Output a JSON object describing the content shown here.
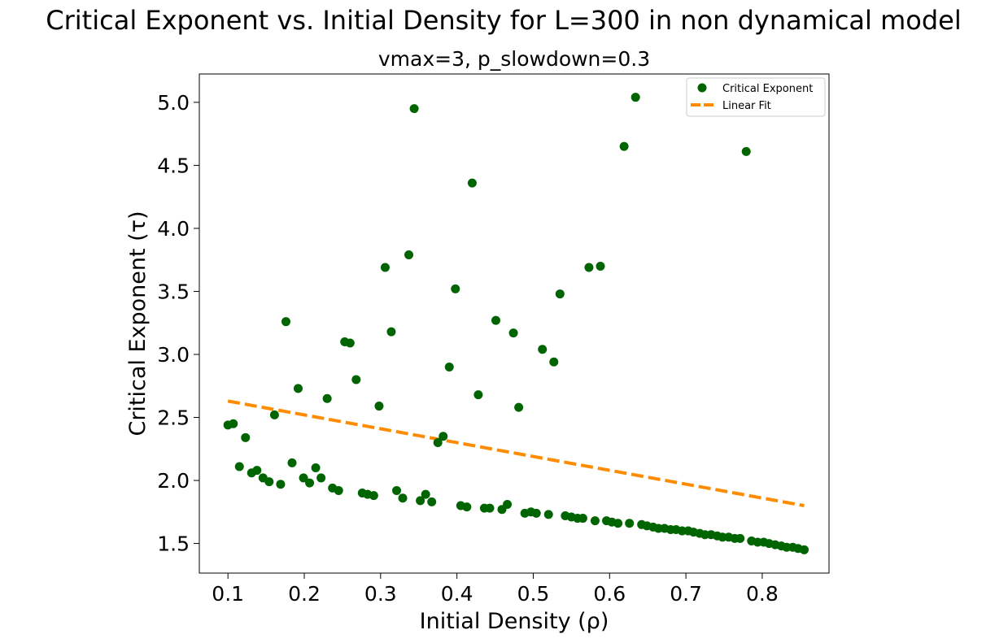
{
  "chart_data": {
    "type": "scatter",
    "title": "Critical Exponent vs. Initial Density for L=300 in non dynamical model",
    "subtitle": "vmax=3, p_slowdown=0.3",
    "xlabel": "Initial Density (ρ)",
    "ylabel": "Critical Exponent (τ)",
    "xlim": [
      0.0625,
      0.8875
    ],
    "ylim": [
      1.265,
      5.225
    ],
    "xticks": [
      0.1,
      0.2,
      0.3,
      0.4,
      0.5,
      0.6,
      0.7,
      0.8
    ],
    "xtick_labels": [
      "0.1",
      "0.2",
      "0.3",
      "0.4",
      "0.5",
      "0.6",
      "0.7",
      "0.8"
    ],
    "yticks": [
      1.5,
      2.0,
      2.5,
      3.0,
      3.5,
      4.0,
      4.5,
      5.0
    ],
    "ytick_labels": [
      "1.5",
      "2.0",
      "2.5",
      "3.0",
      "3.5",
      "4.0",
      "4.5",
      "5.0"
    ],
    "grid": false,
    "legend_position": "upper right",
    "series": [
      {
        "name": "Critical Exponent",
        "kind": "scatter",
        "color": "#006400",
        "points": [
          [
            0.1,
            2.44
          ],
          [
            0.107,
            2.45
          ],
          [
            0.115,
            2.11
          ],
          [
            0.123,
            2.34
          ],
          [
            0.131,
            2.06
          ],
          [
            0.138,
            2.08
          ],
          [
            0.146,
            2.02
          ],
          [
            0.154,
            1.99
          ],
          [
            0.161,
            2.52
          ],
          [
            0.169,
            1.97
          ],
          [
            0.176,
            3.26
          ],
          [
            0.184,
            2.14
          ],
          [
            0.192,
            2.73
          ],
          [
            0.199,
            2.02
          ],
          [
            0.207,
            1.98
          ],
          [
            0.215,
            2.1
          ],
          [
            0.222,
            2.02
          ],
          [
            0.23,
            2.65
          ],
          [
            0.237,
            1.94
          ],
          [
            0.245,
            1.92
          ],
          [
            0.253,
            3.1
          ],
          [
            0.26,
            3.09
          ],
          [
            0.268,
            2.8
          ],
          [
            0.276,
            1.9
          ],
          [
            0.283,
            1.89
          ],
          [
            0.291,
            1.88
          ],
          [
            0.298,
            2.59
          ],
          [
            0.306,
            3.69
          ],
          [
            0.314,
            3.18
          ],
          [
            0.321,
            1.92
          ],
          [
            0.329,
            1.86
          ],
          [
            0.337,
            3.79
          ],
          [
            0.344,
            4.95
          ],
          [
            0.352,
            1.84
          ],
          [
            0.359,
            1.89
          ],
          [
            0.367,
            1.83
          ],
          [
            0.375,
            2.3
          ],
          [
            0.382,
            2.35
          ],
          [
            0.39,
            2.9
          ],
          [
            0.398,
            3.52
          ],
          [
            0.405,
            1.8
          ],
          [
            0.413,
            1.79
          ],
          [
            0.42,
            4.36
          ],
          [
            0.428,
            2.68
          ],
          [
            0.436,
            1.78
          ],
          [
            0.443,
            1.78
          ],
          [
            0.451,
            3.27
          ],
          [
            0.459,
            1.77
          ],
          [
            0.466,
            1.81
          ],
          [
            0.474,
            3.17
          ],
          [
            0.481,
            2.58
          ],
          [
            0.489,
            1.74
          ],
          [
            0.497,
            1.75
          ],
          [
            0.504,
            1.74
          ],
          [
            0.512,
            3.04
          ],
          [
            0.52,
            1.73
          ],
          [
            0.527,
            2.94
          ],
          [
            0.535,
            3.48
          ],
          [
            0.542,
            1.72
          ],
          [
            0.55,
            1.71
          ],
          [
            0.558,
            1.7
          ],
          [
            0.565,
            1.7
          ],
          [
            0.573,
            3.69
          ],
          [
            0.581,
            1.68
          ],
          [
            0.588,
            3.7
          ],
          [
            0.596,
            1.68
          ],
          [
            0.603,
            1.67
          ],
          [
            0.611,
            1.66
          ],
          [
            0.619,
            4.65
          ],
          [
            0.626,
            1.66
          ],
          [
            0.634,
            5.04
          ],
          [
            0.642,
            1.65
          ],
          [
            0.649,
            1.64
          ],
          [
            0.657,
            1.63
          ],
          [
            0.664,
            1.62
          ],
          [
            0.672,
            1.62
          ],
          [
            0.68,
            1.61
          ],
          [
            0.687,
            1.61
          ],
          [
            0.695,
            1.6
          ],
          [
            0.703,
            1.6
          ],
          [
            0.71,
            1.59
          ],
          [
            0.718,
            1.58
          ],
          [
            0.725,
            1.57
          ],
          [
            0.733,
            1.57
          ],
          [
            0.741,
            1.56
          ],
          [
            0.748,
            1.55
          ],
          [
            0.756,
            1.55
          ],
          [
            0.764,
            1.54
          ],
          [
            0.771,
            1.54
          ],
          [
            0.779,
            4.61
          ],
          [
            0.786,
            1.52
          ],
          [
            0.794,
            1.51
          ],
          [
            0.802,
            1.51
          ],
          [
            0.809,
            1.5
          ],
          [
            0.817,
            1.49
          ],
          [
            0.825,
            1.48
          ],
          [
            0.832,
            1.47
          ],
          [
            0.84,
            1.47
          ],
          [
            0.847,
            1.46
          ],
          [
            0.855,
            1.45
          ]
        ]
      },
      {
        "name": "Linear Fit",
        "kind": "line",
        "style": "dashed",
        "color": "#ff8c00",
        "points": [
          [
            0.1,
            2.63
          ],
          [
            0.855,
            1.8
          ]
        ]
      }
    ]
  }
}
